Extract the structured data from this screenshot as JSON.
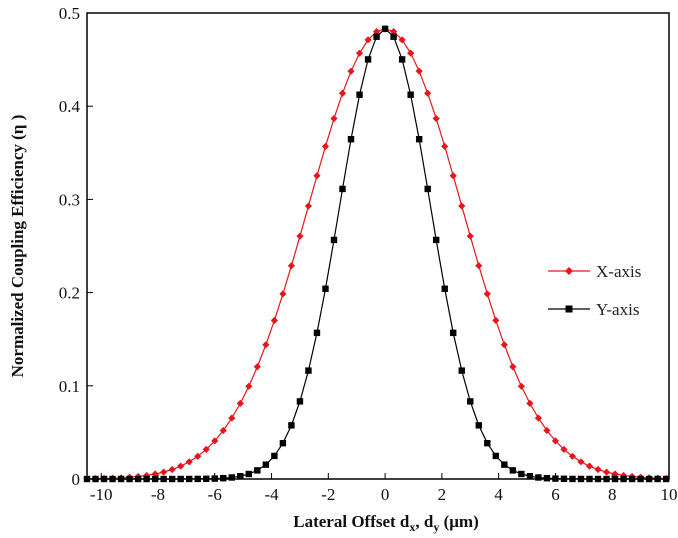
{
  "chart_data": {
    "type": "line",
    "title": "",
    "xlabel": {
      "main": "Lateral Offset d",
      "sub1": "x",
      "sep": ", d",
      "sub2": "y",
      "unit": " (μm)"
    },
    "ylabel": "Normalized Coupling Efficiency (η )",
    "xlim": [
      -10.5,
      10
    ],
    "ylim": [
      0,
      0.5
    ],
    "grid": false,
    "legend": "center-right",
    "x_ticks": [
      "-10",
      "-8",
      "-6",
      "-4",
      "-2",
      "0",
      "2",
      "4",
      "6",
      "8",
      "10"
    ],
    "y_ticks": [
      "0",
      "0.1",
      "0.2",
      "0.3",
      "0.4",
      "0.5"
    ],
    "series": [
      {
        "name": "X-axis",
        "color": "#e8161c",
        "marker": "diamond",
        "peak": 0.483,
        "sigma": 2.7,
        "x_range": [
          -10.5,
          10
        ],
        "step": 0.3
      },
      {
        "name": "Y-axis",
        "color": "#000000",
        "marker": "square",
        "peak": 0.483,
        "sigma": 1.6,
        "x_range": [
          -10.5,
          10
        ],
        "step": 0.3
      }
    ]
  }
}
